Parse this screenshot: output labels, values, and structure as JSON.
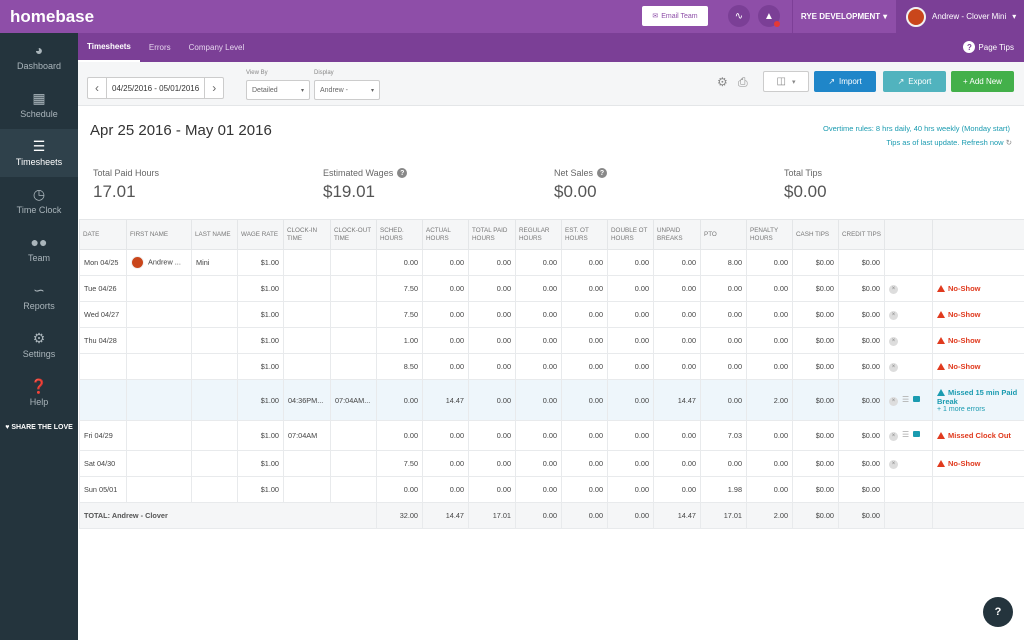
{
  "app": {
    "name": "homebase"
  },
  "topbar": {
    "email_team": "Email Team",
    "location": "RYE DEVELOPMENT",
    "user": "Andrew - Clover Mini"
  },
  "subnav": {
    "tabs": [
      "Timesheets",
      "Errors",
      "Company Level"
    ],
    "page_tips": "Page Tips"
  },
  "sidebar": {
    "items": [
      {
        "label": "Dashboard",
        "icon": "dashboard-icon"
      },
      {
        "label": "Schedule",
        "icon": "calendar-icon"
      },
      {
        "label": "Timesheets",
        "icon": "timesheet-icon"
      },
      {
        "label": "Time Clock",
        "icon": "clock-icon"
      },
      {
        "label": "Team",
        "icon": "team-icon"
      },
      {
        "label": "Reports",
        "icon": "chart-icon"
      },
      {
        "label": "Settings",
        "icon": "gear-icon"
      },
      {
        "label": "Help",
        "icon": "help-icon"
      }
    ],
    "share": "SHARE THE LOVE"
  },
  "controls": {
    "date_range": "04/25/2016 - 05/01/2016",
    "view_by_label": "View By",
    "view_by_value": "Detailed",
    "display_label": "Display",
    "display_value": "Andrew -",
    "import": "Import",
    "export": "Export",
    "add_new": "+ Add New"
  },
  "page": {
    "title": "Apr 25 2016 - May 01 2016",
    "overtime_rules": "Overtime rules: 8 hrs daily, 40 hrs weekly (Monday start)",
    "tips_update": "Tips as of last update. Refresh now"
  },
  "stats": [
    {
      "label": "Total Paid Hours",
      "value": "17.01"
    },
    {
      "label": "Estimated Wages",
      "value": "$19.01"
    },
    {
      "label": "Net Sales",
      "value": "$0.00"
    },
    {
      "label": "Total Tips",
      "value": "$0.00"
    }
  ],
  "table": {
    "headers": [
      "DATE",
      "FIRST NAME",
      "LAST NAME",
      "WAGE RATE",
      "CLOCK-IN TIME",
      "CLOCK-OUT TIME",
      "SCHED. HOURS",
      "ACTUAL HOURS",
      "TOTAL PAID HOURS",
      "REGULAR HOURS",
      "EST. OT HOURS",
      "DOUBLE OT HOURS",
      "UNPAID BREAKS",
      "PTO",
      "PENALTY HOURS",
      "CASH TIPS",
      "CREDIT TIPS",
      "",
      ""
    ],
    "rows": [
      {
        "date": "Mon 04/25",
        "first": "Andrew ...",
        "last": "Mini",
        "wage": "$1.00",
        "in": "",
        "out": "",
        "sched": "0.00",
        "actual": "0.00",
        "paid": "0.00",
        "regular": "0.00",
        "ot": "0.00",
        "dot": "0.00",
        "unpaid": "0.00",
        "pto": "8.00",
        "penalty": "0.00",
        "cash": "$0.00",
        "credit": "$0.00",
        "alert": "",
        "alert2": "",
        "more": ""
      },
      {
        "date": "Tue 04/26",
        "first": "",
        "last": "",
        "wage": "$1.00",
        "in": "",
        "out": "",
        "sched": "7.50",
        "actual": "0.00",
        "paid": "0.00",
        "regular": "0.00",
        "ot": "0.00",
        "dot": "0.00",
        "unpaid": "0.00",
        "pto": "0.00",
        "penalty": "0.00",
        "cash": "$0.00",
        "credit": "$0.00",
        "alert": "No-Show",
        "alert2": "",
        "more": ""
      },
      {
        "date": "Wed 04/27",
        "first": "",
        "last": "",
        "wage": "$1.00",
        "in": "",
        "out": "",
        "sched": "7.50",
        "actual": "0.00",
        "paid": "0.00",
        "regular": "0.00",
        "ot": "0.00",
        "dot": "0.00",
        "unpaid": "0.00",
        "pto": "0.00",
        "penalty": "0.00",
        "cash": "$0.00",
        "credit": "$0.00",
        "alert": "No-Show",
        "alert2": "",
        "more": ""
      },
      {
        "date": "Thu 04/28",
        "first": "",
        "last": "",
        "wage": "$1.00",
        "in": "",
        "out": "",
        "sched": "1.00",
        "actual": "0.00",
        "paid": "0.00",
        "regular": "0.00",
        "ot": "0.00",
        "dot": "0.00",
        "unpaid": "0.00",
        "pto": "0.00",
        "penalty": "0.00",
        "cash": "$0.00",
        "credit": "$0.00",
        "alert": "No-Show",
        "alert2": "",
        "more": ""
      },
      {
        "date": "",
        "first": "",
        "last": "",
        "wage": "$1.00",
        "in": "",
        "out": "",
        "sched": "8.50",
        "actual": "0.00",
        "paid": "0.00",
        "regular": "0.00",
        "ot": "0.00",
        "dot": "0.00",
        "unpaid": "0.00",
        "pto": "0.00",
        "penalty": "0.00",
        "cash": "$0.00",
        "credit": "$0.00",
        "alert": "No-Show",
        "alert2": "",
        "more": ""
      },
      {
        "date": "",
        "first": "",
        "last": "",
        "wage": "$1.00",
        "in": "04:36PM...",
        "out": "07:04AM...",
        "sched": "0.00",
        "actual": "14.47",
        "paid": "0.00",
        "regular": "0.00",
        "ot": "0.00",
        "dot": "0.00",
        "unpaid": "14.47",
        "pto": "0.00",
        "penalty": "2.00",
        "cash": "$0.00",
        "credit": "$0.00",
        "alert": "",
        "alert2": "Missed 15 min Paid Break",
        "more": "+ 1 more errors"
      },
      {
        "date": "Fri 04/29",
        "first": "",
        "last": "",
        "wage": "$1.00",
        "in": "07:04AM",
        "out": "",
        "sched": "0.00",
        "actual": "0.00",
        "paid": "0.00",
        "regular": "0.00",
        "ot": "0.00",
        "dot": "0.00",
        "unpaid": "0.00",
        "pto": "7.03",
        "penalty": "0.00",
        "cash": "$0.00",
        "credit": "$0.00",
        "alert": "Missed Clock Out",
        "alert2": "",
        "more": ""
      },
      {
        "date": "Sat 04/30",
        "first": "",
        "last": "",
        "wage": "$1.00",
        "in": "",
        "out": "",
        "sched": "7.50",
        "actual": "0.00",
        "paid": "0.00",
        "regular": "0.00",
        "ot": "0.00",
        "dot": "0.00",
        "unpaid": "0.00",
        "pto": "0.00",
        "penalty": "0.00",
        "cash": "$0.00",
        "credit": "$0.00",
        "alert": "No-Show",
        "alert2": "",
        "more": ""
      },
      {
        "date": "Sun 05/01",
        "first": "",
        "last": "",
        "wage": "$1.00",
        "in": "",
        "out": "",
        "sched": "0.00",
        "actual": "0.00",
        "paid": "0.00",
        "regular": "0.00",
        "ot": "0.00",
        "dot": "0.00",
        "unpaid": "0.00",
        "pto": "1.98",
        "penalty": "0.00",
        "cash": "$0.00",
        "credit": "$0.00",
        "alert": "",
        "alert2": "",
        "more": ""
      }
    ],
    "total": {
      "label": "TOTAL: Andrew - Clover",
      "sched": "32.00",
      "actual": "14.47",
      "paid": "17.01",
      "regular": "0.00",
      "ot": "0.00",
      "dot": "0.00",
      "unpaid": "14.47",
      "pto": "17.01",
      "penalty": "2.00",
      "cash": "$0.00",
      "credit": "$0.00"
    }
  },
  "chat": {
    "icon": "?"
  }
}
